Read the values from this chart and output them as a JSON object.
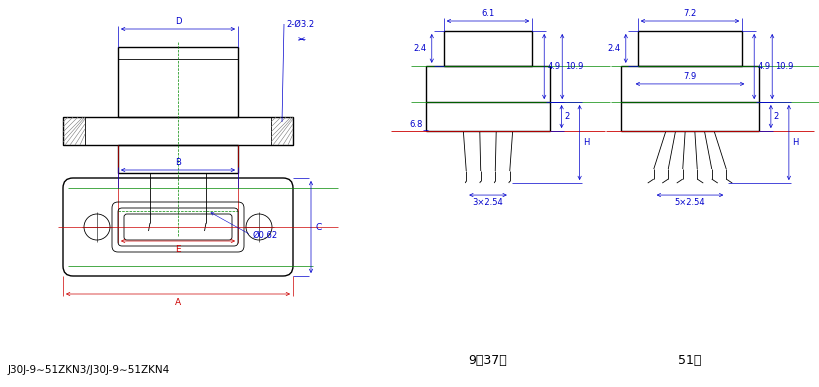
{
  "bg_color": "#ffffff",
  "line_color": "#000000",
  "dim_color": "#0000cc",
  "red_color": "#cc0000",
  "green_color": "#008800",
  "title_text": "J30J-9∼51ZKN3/J30J-9∼51ZKN4",
  "label_9_37": "9～37芯",
  "label_51": "51芯",
  "hole": "2-Ø3.2",
  "pin_dia": "Ø0.62",
  "w1": "6.1",
  "w2": "7.2",
  "h_top": "2.4",
  "h_mid": "4.9",
  "h_total": "10.9",
  "h_bot": "2",
  "H_label": "H",
  "pitch1": "3×2.54",
  "pitch2": "5×2.54",
  "w_flange1": "6.8",
  "w_flange2": "7.9",
  "dim_D": "D",
  "dim_E": "E",
  "dim_B": "B",
  "dim_A": "A",
  "dim_C": "C"
}
